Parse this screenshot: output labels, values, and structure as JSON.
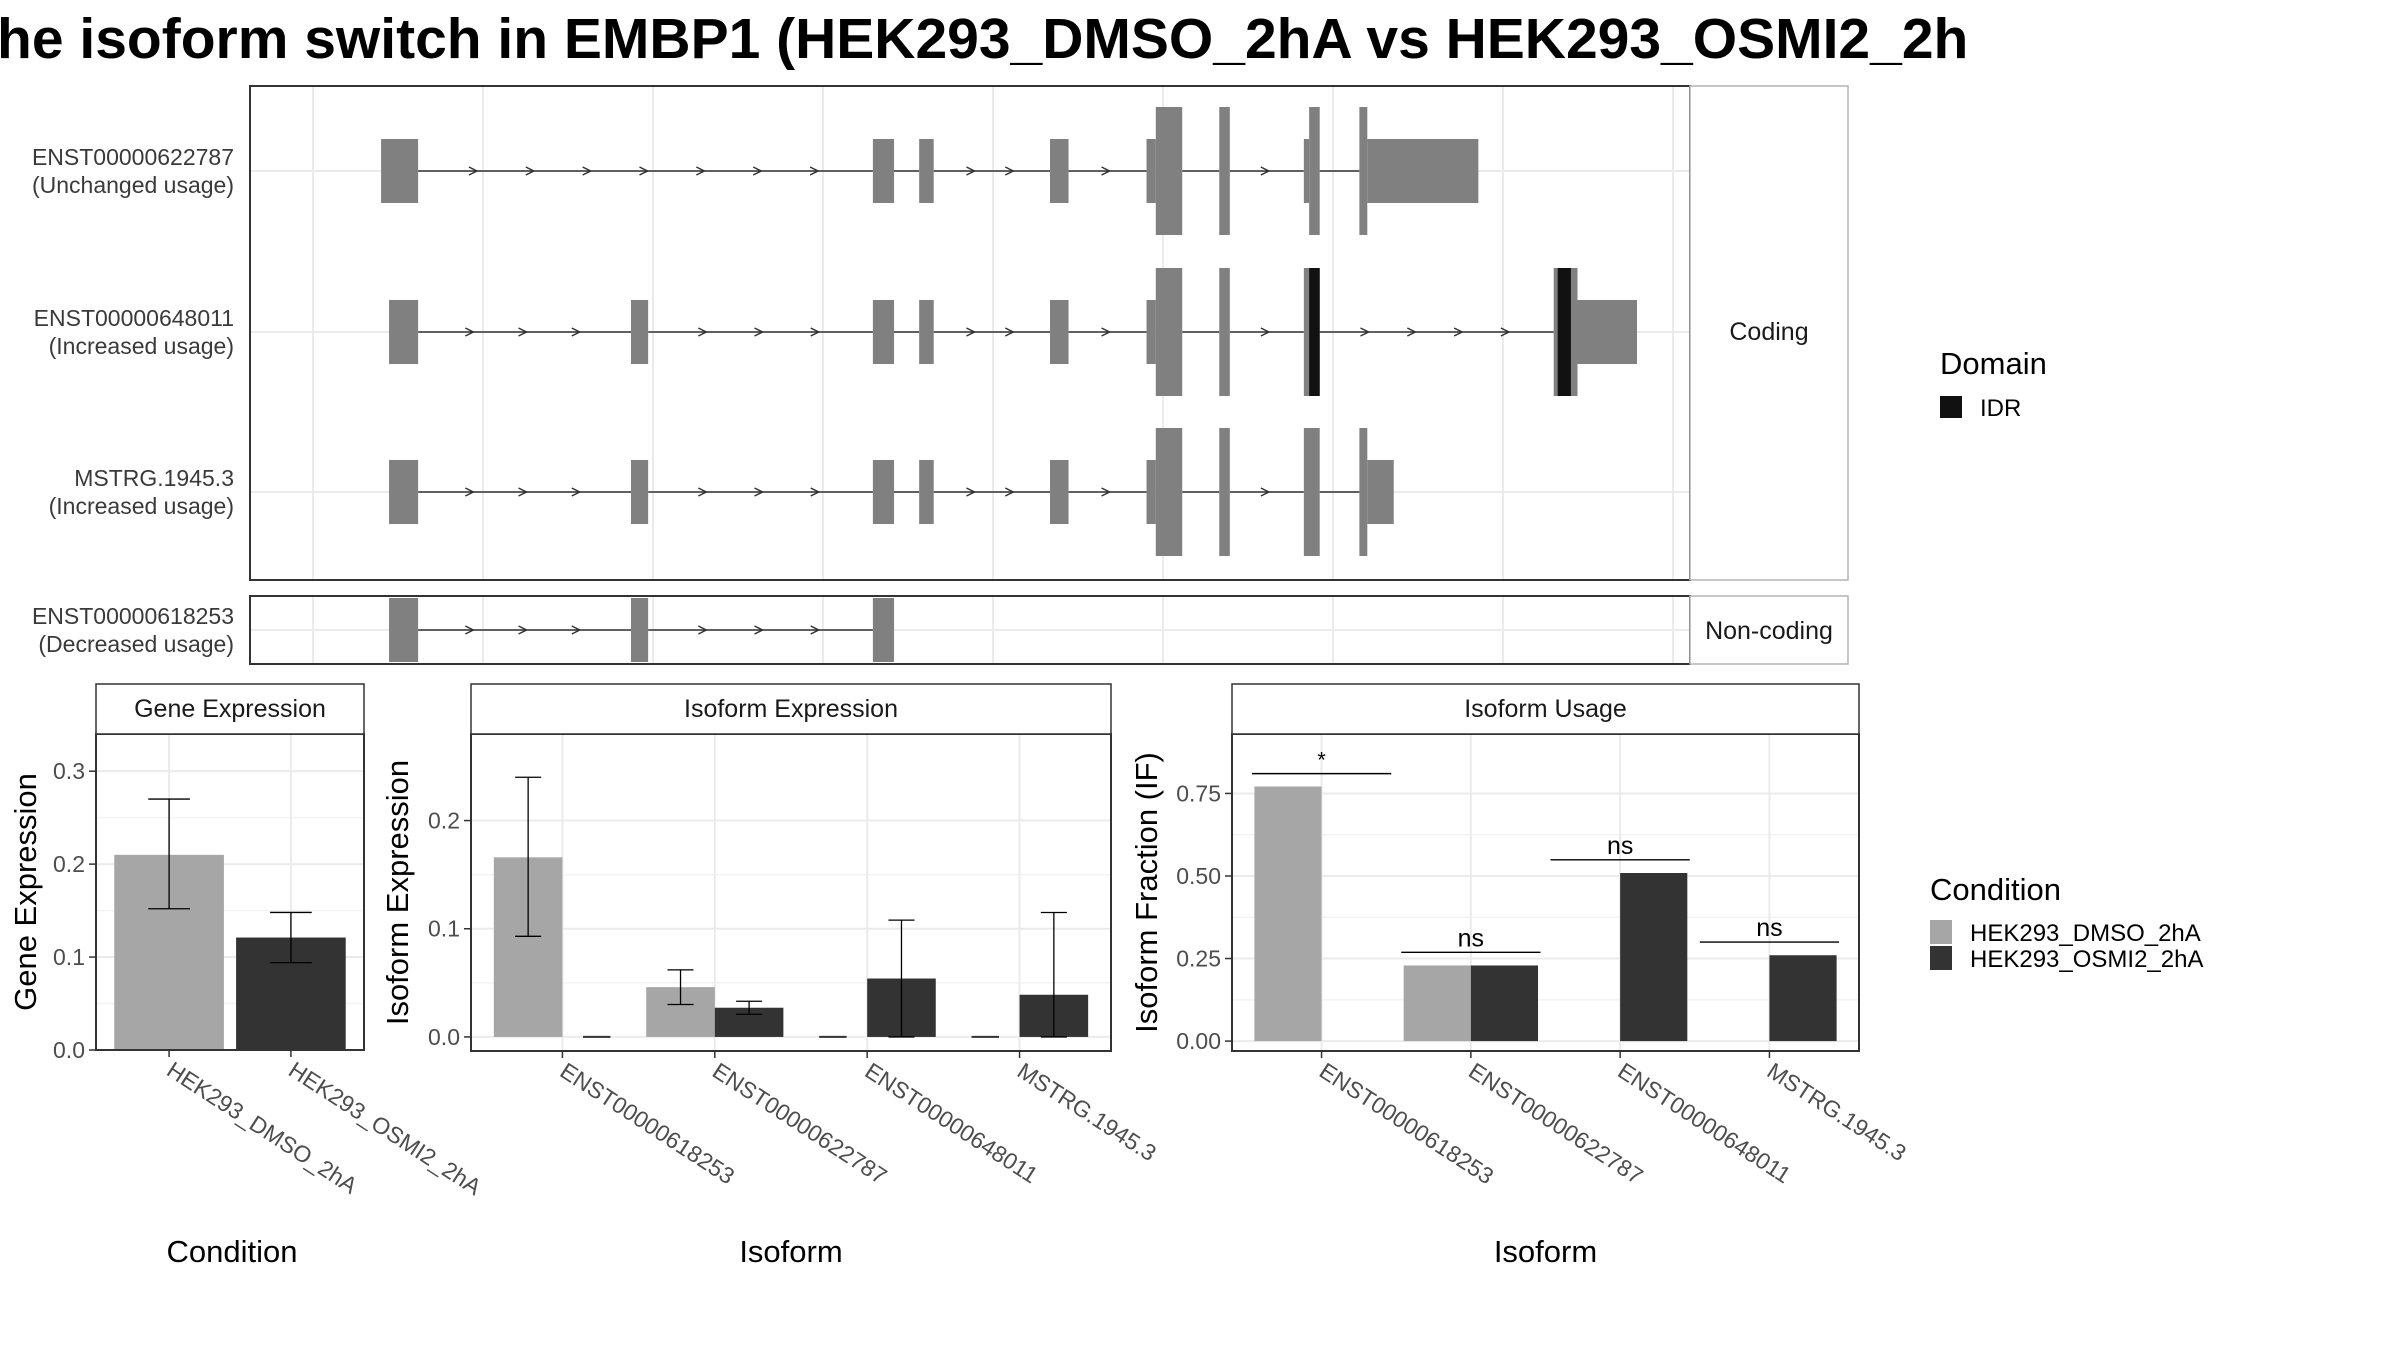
{
  "title": "he isoform switch in EMBP1 (HEK293_DMSO_2hA vs HEK293_OSMI2_2h",
  "colors": {
    "dmso": "#a6a6a6",
    "osmi": "#333333",
    "exon": "#808080",
    "idr": "#111111",
    "grid": "#ebebeb"
  },
  "structure": {
    "x_range": [
      0,
      1000
    ],
    "groups": [
      {
        "strip": "Coding",
        "transcripts": [
          {
            "id": "ENST00000622787",
            "usage": "(Unchanged usage)",
            "exons": [
              [
                50,
                78,
                "s"
              ],
              [
                422,
                438,
                "s"
              ],
              [
                457,
                468,
                "s"
              ],
              [
                556,
                570,
                "s"
              ],
              [
                629,
                636,
                "s"
              ],
              [
                636,
                656,
                "t"
              ],
              [
                684,
                692,
                "t"
              ],
              [
                748,
                752,
                "s"
              ],
              [
                752,
                760,
                "t"
              ],
              [
                790,
                796,
                "t"
              ],
              [
                796,
                880,
                "s"
              ]
            ],
            "idr": []
          },
          {
            "id": "ENST00000648011",
            "usage": "(Increased usage)",
            "exons": [
              [
                56,
                78,
                "s"
              ],
              [
                239,
                252,
                "s"
              ],
              [
                422,
                438,
                "s"
              ],
              [
                457,
                468,
                "s"
              ],
              [
                556,
                570,
                "s"
              ],
              [
                629,
                636,
                "s"
              ],
              [
                636,
                656,
                "t"
              ],
              [
                684,
                692,
                "t"
              ],
              [
                748,
                760,
                "t"
              ],
              [
                937,
                955,
                "t"
              ],
              [
                955,
                1000,
                "s"
              ]
            ],
            "idr": [
              [
                752,
                760
              ],
              [
                940,
                950
              ]
            ]
          },
          {
            "id": "MSTRG.1945.3",
            "usage": "(Increased usage)",
            "exons": [
              [
                56,
                78,
                "s"
              ],
              [
                239,
                252,
                "s"
              ],
              [
                422,
                438,
                "s"
              ],
              [
                457,
                468,
                "s"
              ],
              [
                556,
                570,
                "s"
              ],
              [
                629,
                636,
                "s"
              ],
              [
                636,
                656,
                "t"
              ],
              [
                684,
                692,
                "t"
              ],
              [
                748,
                760,
                "t"
              ],
              [
                790,
                796,
                "t"
              ],
              [
                796,
                816,
                "s"
              ]
            ],
            "idr": []
          }
        ]
      },
      {
        "strip": "Non-coding",
        "transcripts": [
          {
            "id": "ENST00000618253",
            "usage": "(Decreased usage)",
            "exons": [
              [
                56,
                78,
                "s"
              ],
              [
                239,
                252,
                "s"
              ],
              [
                422,
                438,
                "s"
              ]
            ],
            "idr": []
          }
        ]
      }
    ]
  },
  "legend_domain": {
    "title": "Domain",
    "items": [
      {
        "label": "IDR",
        "color": "#111111"
      }
    ]
  },
  "legend_condition": {
    "title": "Condition",
    "items": [
      {
        "label": "HEK293_DMSO_2hA",
        "color": "#a6a6a6"
      },
      {
        "label": "HEK293_OSMI2_2hA",
        "color": "#333333"
      }
    ]
  },
  "chart_data": [
    {
      "type": "bar",
      "title": "Gene Expression",
      "xlabel": "Condition",
      "ylabel": "Gene Expression",
      "categories": [
        "HEK293_DMSO_2hA",
        "HEK293_OSMI2_2hA"
      ],
      "ylim": [
        0,
        0.34
      ],
      "yticks": [
        0.0,
        0.1,
        0.2,
        0.3
      ],
      "ytick_labels": [
        "0.0",
        "0.1",
        "0.2",
        "0.3"
      ],
      "bars": [
        {
          "cat": 0,
          "offset": 0,
          "width": 0.9,
          "value": 0.21,
          "err": [
            0.152,
            0.27
          ],
          "cond": 0
        },
        {
          "cat": 1,
          "offset": 0,
          "width": 0.9,
          "value": 0.121,
          "err": [
            0.094,
            0.148
          ],
          "cond": 1
        }
      ]
    },
    {
      "type": "bar",
      "title": "Isoform Expression",
      "xlabel": "Isoform",
      "ylabel": "Isoform Expression",
      "categories": [
        "ENST00000618253",
        "ENST00000622787",
        "ENST00000648011",
        "MSTRG.1945.3"
      ],
      "ylim": [
        -0.013,
        0.28
      ],
      "yticks": [
        0.0,
        0.1,
        0.2
      ],
      "ytick_labels": [
        "0.0",
        "0.1",
        "0.2"
      ],
      "bars": [
        {
          "cat": 0,
          "offset": -0.225,
          "width": 0.45,
          "value": 0.166,
          "err": [
            0.093,
            0.24
          ],
          "cond": 0
        },
        {
          "cat": 0,
          "offset": 0.225,
          "width": 0.45,
          "value": 0.0,
          "err": null,
          "cond": 1
        },
        {
          "cat": 1,
          "offset": -0.225,
          "width": 0.45,
          "value": 0.046,
          "err": [
            0.03,
            0.062
          ],
          "cond": 0
        },
        {
          "cat": 1,
          "offset": 0.225,
          "width": 0.45,
          "value": 0.027,
          "err": [
            0.021,
            0.033
          ],
          "cond": 1
        },
        {
          "cat": 2,
          "offset": -0.225,
          "width": 0.45,
          "value": 0.0,
          "err": null,
          "cond": 0
        },
        {
          "cat": 2,
          "offset": 0.225,
          "width": 0.45,
          "value": 0.054,
          "err": [
            0.0,
            0.108
          ],
          "cond": 1
        },
        {
          "cat": 3,
          "offset": -0.225,
          "width": 0.45,
          "value": 0.0,
          "err": null,
          "cond": 0
        },
        {
          "cat": 3,
          "offset": 0.225,
          "width": 0.45,
          "value": 0.039,
          "err": [
            0.0,
            0.115
          ],
          "cond": 1
        }
      ]
    },
    {
      "type": "bar",
      "title": "Isoform Usage",
      "xlabel": "Isoform",
      "ylabel": "Isoform Fraction (IF)",
      "categories": [
        "ENST00000618253",
        "ENST00000622787",
        "ENST00000648011",
        "MSTRG.1945.3"
      ],
      "ylim": [
        -0.03,
        0.93
      ],
      "yticks": [
        0.0,
        0.25,
        0.5,
        0.75
      ],
      "ytick_labels": [
        "0.00",
        "0.25",
        "0.50",
        "0.75"
      ],
      "bars": [
        {
          "cat": 0,
          "offset": -0.225,
          "width": 0.45,
          "value": 0.771,
          "err": null,
          "cond": 0
        },
        {
          "cat": 1,
          "offset": -0.225,
          "width": 0.45,
          "value": 0.229,
          "err": null,
          "cond": 0
        },
        {
          "cat": 1,
          "offset": 0.225,
          "width": 0.45,
          "value": 0.229,
          "err": null,
          "cond": 1
        },
        {
          "cat": 2,
          "offset": 0.225,
          "width": 0.45,
          "value": 0.509,
          "err": null,
          "cond": 1
        },
        {
          "cat": 3,
          "offset": 0.225,
          "width": 0.45,
          "value": 0.26,
          "err": null,
          "cond": 1
        }
      ],
      "annotations": [
        {
          "cat": 0,
          "label": "*",
          "y": 0.81
        },
        {
          "cat": 1,
          "label": "ns",
          "y": 0.269
        },
        {
          "cat": 2,
          "label": "ns",
          "y": 0.549
        },
        {
          "cat": 3,
          "label": "ns",
          "y": 0.3
        }
      ]
    }
  ]
}
